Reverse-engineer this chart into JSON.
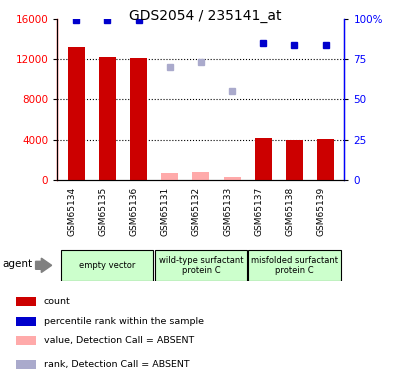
{
  "title": "GDS2054 / 235141_at",
  "samples": [
    "GSM65134",
    "GSM65135",
    "GSM65136",
    "GSM65131",
    "GSM65132",
    "GSM65133",
    "GSM65137",
    "GSM65138",
    "GSM65139"
  ],
  "bar_values": [
    13200,
    12200,
    12100,
    null,
    null,
    null,
    4200,
    4000,
    4100
  ],
  "bar_absent_values": [
    null,
    null,
    null,
    650,
    750,
    250,
    null,
    null,
    null
  ],
  "rank_present": [
    99,
    99,
    99,
    null,
    null,
    null,
    85,
    84,
    84
  ],
  "rank_absent": [
    null,
    null,
    null,
    70,
    73,
    55,
    null,
    null,
    null
  ],
  "ylim_left": [
    0,
    16000
  ],
  "ylim_right": [
    0,
    100
  ],
  "yticks_left": [
    0,
    4000,
    8000,
    12000,
    16000
  ],
  "yticks_right": [
    0,
    25,
    50,
    75,
    100
  ],
  "ytick_labels_right": [
    "0",
    "25",
    "50",
    "75",
    "100%"
  ],
  "bar_color": "#cc0000",
  "bar_absent_color": "#ffaaaa",
  "rank_present_color": "#0000cc",
  "rank_absent_color": "#aaaacc",
  "group_box_color": "#ccffcc",
  "group_boundaries": [
    [
      0,
      2,
      "empty vector"
    ],
    [
      3,
      5,
      "wild-type surfactant\nprotein C"
    ],
    [
      6,
      8,
      "misfolded surfactant\nprotein C"
    ]
  ],
  "agent_label": "agent",
  "legend_items": [
    [
      "#cc0000",
      "count"
    ],
    [
      "#0000cc",
      "percentile rank within the sample"
    ],
    [
      "#ffaaaa",
      "value, Detection Call = ABSENT"
    ],
    [
      "#aaaacc",
      "rank, Detection Call = ABSENT"
    ]
  ]
}
